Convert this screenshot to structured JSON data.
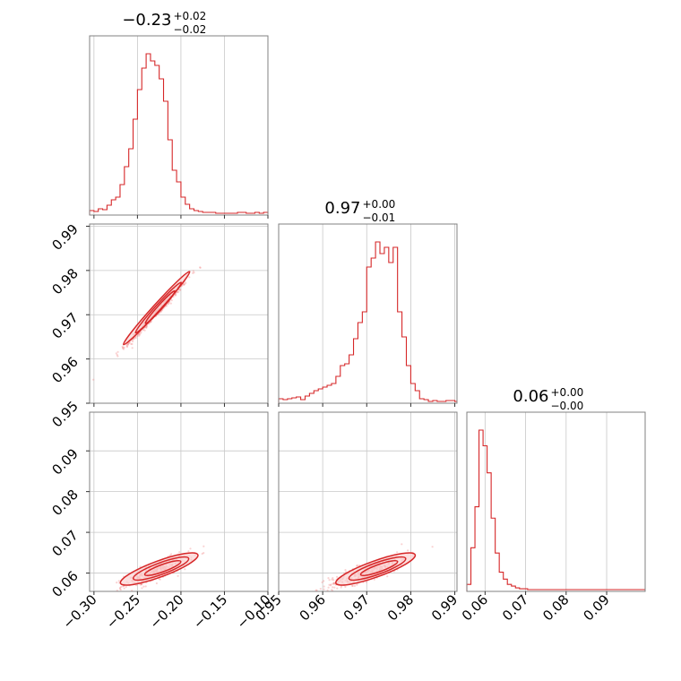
{
  "chart_data": {
    "type": "corner",
    "color": "#d62728",
    "parameters": [
      {
        "title": {
          "value": "−0.23",
          "plus": "+0.02",
          "minus": "−0.02"
        },
        "range": [
          -0.305,
          -0.1
        ],
        "ticks": [
          -0.3,
          -0.25,
          -0.2,
          -0.15,
          -0.1
        ],
        "tick_labels": [
          "−0.30",
          "−0.25",
          "−0.20",
          "−0.15",
          "−0.10"
        ]
      },
      {
        "title": {
          "value": "0.97",
          "plus": "+0.00",
          "minus": "−0.01"
        },
        "range": [
          0.95,
          0.9905
        ],
        "ticks": [
          0.95,
          0.96,
          0.97,
          0.98,
          0.99
        ],
        "tick_labels": [
          "0.95",
          "0.96",
          "0.97",
          "0.98",
          "0.99"
        ]
      },
      {
        "title": {
          "value": "0.06",
          "plus": "+0.00",
          "minus": "−0.00"
        },
        "range": [
          0.0555,
          0.0995
        ],
        "ticks": [
          0.06,
          0.07,
          0.08,
          0.09
        ],
        "tick_labels": [
          "0.06",
          "0.07",
          "0.08",
          "0.09"
        ]
      }
    ],
    "histograms": [
      {
        "bins": [
          -0.305,
          -0.3,
          -0.295,
          -0.29,
          -0.285,
          -0.28,
          -0.275,
          -0.27,
          -0.265,
          -0.26,
          -0.255,
          -0.25,
          -0.245,
          -0.24,
          -0.235,
          -0.23,
          -0.225,
          -0.22,
          -0.215,
          -0.21,
          -0.205,
          -0.2,
          -0.195,
          -0.19,
          -0.185,
          -0.18,
          -0.175,
          -0.17,
          -0.165,
          -0.16,
          -0.155,
          -0.15,
          -0.145,
          -0.14,
          -0.135,
          -0.13,
          -0.125,
          -0.12,
          -0.115,
          -0.11,
          -0.105,
          -0.1
        ],
        "counts": [
          3,
          2,
          5,
          4,
          9,
          15,
          18,
          32,
          52,
          72,
          105,
          138,
          162,
          178,
          170,
          165,
          150,
          125,
          82,
          48,
          35,
          18,
          10,
          5,
          3,
          2,
          1,
          1,
          1,
          0,
          0,
          0,
          0,
          0,
          1,
          1,
          0,
          0,
          1,
          0,
          1
        ]
      },
      {
        "bins": [
          0.95,
          0.951,
          0.952,
          0.953,
          0.954,
          0.955,
          0.956,
          0.957,
          0.958,
          0.959,
          0.96,
          0.961,
          0.962,
          0.963,
          0.964,
          0.965,
          0.966,
          0.967,
          0.968,
          0.969,
          0.97,
          0.971,
          0.972,
          0.973,
          0.974,
          0.975,
          0.976,
          0.977,
          0.978,
          0.979,
          0.98,
          0.981,
          0.982,
          0.983,
          0.984,
          0.985,
          0.986,
          0.987,
          0.988,
          0.989,
          0.99
        ],
        "counts": [
          3,
          2,
          3,
          4,
          5,
          2,
          6,
          9,
          12,
          14,
          16,
          18,
          20,
          28,
          40,
          42,
          52,
          70,
          88,
          100,
          150,
          160,
          178,
          165,
          172,
          155,
          172,
          100,
          72,
          40,
          20,
          12,
          3,
          2,
          0,
          1,
          0,
          0,
          1,
          1
        ]
      },
      {
        "bins": [
          0.0555,
          0.0565,
          0.0575,
          0.0585,
          0.0595,
          0.0605,
          0.0615,
          0.0625,
          0.0635,
          0.0645,
          0.0655,
          0.0665,
          0.0675,
          0.0685,
          0.0695,
          0.0705
        ],
        "counts": [
          6,
          48,
          95,
          183,
          165,
          134,
          82,
          42,
          20,
          12,
          6,
          4,
          2,
          1,
          1
        ]
      }
    ]
  }
}
